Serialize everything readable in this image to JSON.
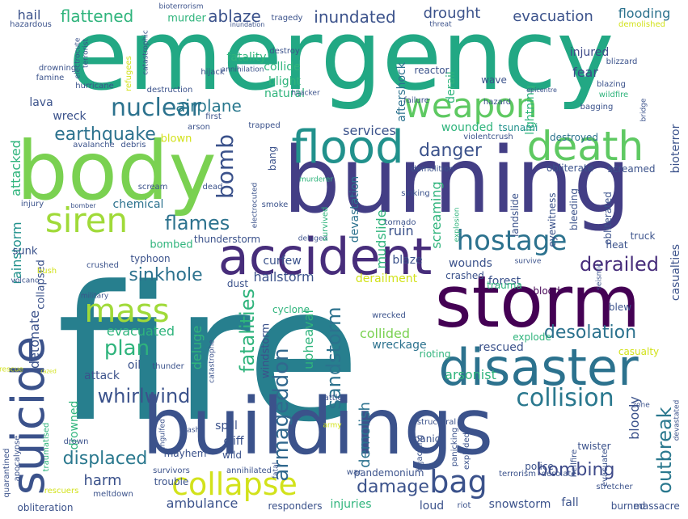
{
  "words": [
    {
      "text": "fire",
      "color": "#277f8e"
    },
    {
      "text": "emergency",
      "color": "#22a884"
    },
    {
      "text": "burning",
      "color": "#433e85"
    },
    {
      "text": "buildings",
      "color": "#3b528b"
    },
    {
      "text": "body",
      "color": "#7ad151"
    },
    {
      "text": "storm",
      "color": "#440154"
    },
    {
      "text": "accident",
      "color": "#472d7b"
    },
    {
      "text": "disaster",
      "color": "#2c728e"
    },
    {
      "text": "death",
      "color": "#5ec962"
    },
    {
      "text": "flood",
      "color": "#21918c"
    },
    {
      "text": "weapon",
      "color": "#5ec962"
    },
    {
      "text": "suicide",
      "color": "#3b528b"
    },
    {
      "text": "siren",
      "color": "#a0da39"
    },
    {
      "text": "mass",
      "color": "#a0da39"
    },
    {
      "text": "hostage",
      "color": "#2c728e"
    },
    {
      "text": "nuclear",
      "color": "#2c728e"
    },
    {
      "text": "collapse",
      "color": "#d2e21b"
    },
    {
      "text": "bag",
      "color": "#3b528b"
    },
    {
      "text": "collision",
      "color": "#2a788e"
    },
    {
      "text": "whirlwind",
      "color": "#3b528b"
    },
    {
      "text": "bomb",
      "color": "#3b528b"
    },
    {
      "text": "derailed",
      "color": "#472d7b"
    },
    {
      "text": "flames",
      "color": "#2c728e"
    },
    {
      "text": "earthquake",
      "color": "#2c728e"
    },
    {
      "text": "danger",
      "color": "#3b528b"
    },
    {
      "text": "desolation",
      "color": "#2c728e"
    },
    {
      "text": "armageddon",
      "color": "#31688e"
    },
    {
      "text": "sandstorm",
      "color": "#2c728e"
    },
    {
      "text": "plan",
      "color": "#2fb47c"
    },
    {
      "text": "displaced",
      "color": "#2a788e"
    },
    {
      "text": "damage",
      "color": "#3b528b"
    },
    {
      "text": "bombing",
      "color": "#3e4a89"
    },
    {
      "text": "outbreak",
      "color": "#2a788e"
    },
    {
      "text": "fatalities",
      "color": "#2fb47c"
    },
    {
      "text": "sinkhole",
      "color": "#2c728e"
    },
    {
      "text": "evacuation",
      "color": "#3b528b"
    },
    {
      "text": "inundated",
      "color": "#3b528b"
    },
    {
      "text": "flattened",
      "color": "#2fb47c"
    },
    {
      "text": "ablaze",
      "color": "#3b528b"
    },
    {
      "text": "drought",
      "color": "#3b528b"
    },
    {
      "text": "flooding",
      "color": "#2c728e"
    },
    {
      "text": "airplane",
      "color": "#2a788e"
    },
    {
      "text": "fear",
      "color": "#3e4a89"
    },
    {
      "text": "injured",
      "color": "#3e4a89"
    },
    {
      "text": "harm",
      "color": "#3b528b"
    },
    {
      "text": "ambulance",
      "color": "#3b528b"
    },
    {
      "text": "evacuated",
      "color": "#2fb47c"
    },
    {
      "text": "collided",
      "color": "#7ad151"
    },
    {
      "text": "arsonist",
      "color": "#2fb47c"
    },
    {
      "text": "forest",
      "color": "#3b528b"
    },
    {
      "text": "wounds",
      "color": "#3b528b"
    },
    {
      "text": "wreckage",
      "color": "#2c728e"
    },
    {
      "text": "rescued",
      "color": "#3b528b"
    },
    {
      "text": "deluge",
      "color": "#2fb47c"
    },
    {
      "text": "upheaval",
      "color": "#2fb47c"
    },
    {
      "text": "demolish",
      "color": "#2c728e"
    },
    {
      "text": "rainstorm",
      "color": "#21918c"
    },
    {
      "text": "detonate",
      "color": "#3b528b"
    },
    {
      "text": "attacked",
      "color": "#2fb47c"
    },
    {
      "text": "services",
      "color": "#3b528b"
    },
    {
      "text": "wounded",
      "color": "#2fb47c"
    },
    {
      "text": "bloody",
      "color": "#3b528b"
    },
    {
      "text": "casualties",
      "color": "#3b528b"
    },
    {
      "text": "bioterror",
      "color": "#3b528b"
    },
    {
      "text": "ruin",
      "color": "#3b528b"
    },
    {
      "text": "mudslide",
      "color": "#2fb47c"
    },
    {
      "text": "devastation",
      "color": "#2c728e"
    },
    {
      "text": "screaming",
      "color": "#2fb47c"
    },
    {
      "text": "hailstorm",
      "color": "#3b528b"
    },
    {
      "text": "curfew",
      "color": "#3b528b"
    },
    {
      "text": "blaze",
      "color": "#3b528b"
    },
    {
      "text": "chemical",
      "color": "#2c728e"
    },
    {
      "text": "natural",
      "color": "#2fb47c"
    },
    {
      "text": "blight",
      "color": "#2fb47c"
    },
    {
      "text": "collide",
      "color": "#2fb47c"
    },
    {
      "text": "fatality",
      "color": "#2fb47c"
    },
    {
      "text": "murder",
      "color": "#2fb47c"
    },
    {
      "text": "hail",
      "color": "#3b528b"
    },
    {
      "text": "aftershock",
      "color": "#2c728e"
    },
    {
      "text": "derail",
      "color": "#2fb47c"
    },
    {
      "text": "lightning",
      "color": "#2fb47c"
    },
    {
      "text": "wave",
      "color": "#3b528b"
    },
    {
      "text": "wreck",
      "color": "#3b528b"
    },
    {
      "text": "lava",
      "color": "#3b528b"
    },
    {
      "text": "blown",
      "color": "#d2e21b"
    },
    {
      "text": "bombed",
      "color": "#2fb47c"
    },
    {
      "text": "sunk",
      "color": "#3b528b"
    },
    {
      "text": "collapsed",
      "color": "#3b528b"
    },
    {
      "text": "attack",
      "color": "#3b528b"
    },
    {
      "text": "oil",
      "color": "#3b528b"
    },
    {
      "text": "drowned",
      "color": "#2fb47c"
    },
    {
      "text": "spill",
      "color": "#3b528b"
    },
    {
      "text": "cliff",
      "color": "#3b528b"
    },
    {
      "text": "windstorm",
      "color": "#3b528b"
    },
    {
      "text": "loud",
      "color": "#3b528b"
    },
    {
      "text": "injuries",
      "color": "#2fb47c"
    },
    {
      "text": "snowstorm",
      "color": "#3b528b"
    },
    {
      "text": "fall",
      "color": "#3b528b"
    },
    {
      "text": "panic",
      "color": "#3b528b"
    },
    {
      "text": "bang",
      "color": "#3b528b"
    },
    {
      "text": "destroyed",
      "color": "#2c728e"
    },
    {
      "text": "tsunami",
      "color": "#21918c"
    },
    {
      "text": "reactor",
      "color": "#3b528b"
    },
    {
      "text": "screamed",
      "color": "#3b528b"
    },
    {
      "text": "obliterate",
      "color": "#3b528b"
    },
    {
      "text": "eyewitness",
      "color": "#3b528b"
    },
    {
      "text": "landslide",
      "color": "#3b528b"
    },
    {
      "text": "bleeding",
      "color": "#3b528b"
    },
    {
      "text": "obliterated",
      "color": "#3b528b"
    },
    {
      "text": "heat",
      "color": "#3b528b"
    },
    {
      "text": "truck",
      "color": "#3b528b"
    },
    {
      "text": "crashed",
      "color": "#3b528b"
    },
    {
      "text": "trauma",
      "color": "#2fb47c"
    },
    {
      "text": "blood",
      "color": "#440154"
    },
    {
      "text": "blew",
      "color": "#3b528b"
    },
    {
      "text": "seismic",
      "color": "#3b528b"
    },
    {
      "text": "explode",
      "color": "#2fb47c"
    },
    {
      "text": "casualty",
      "color": "#d2e21b"
    },
    {
      "text": "rioting",
      "color": "#2fb47c"
    },
    {
      "text": "explosion",
      "color": "#2fb47c"
    },
    {
      "text": "derailment",
      "color": "#d2e21b"
    },
    {
      "text": "typhoon",
      "color": "#3b528b"
    },
    {
      "text": "crushed",
      "color": "#3b528b"
    },
    {
      "text": "thunderstorm",
      "color": "#3b528b"
    },
    {
      "text": "deluged",
      "color": "#3b528b"
    },
    {
      "text": "dust",
      "color": "#3b528b"
    },
    {
      "text": "cyclone",
      "color": "#2fb47c"
    },
    {
      "text": "catastrophe",
      "color": "#3b528b"
    },
    {
      "text": "thunder",
      "color": "#3b528b"
    },
    {
      "text": "wild",
      "color": "#3b528b"
    },
    {
      "text": "mayhem",
      "color": "#3b528b"
    },
    {
      "text": "survivors",
      "color": "#3b528b"
    },
    {
      "text": "annihilated",
      "color": "#3b528b"
    },
    {
      "text": "war",
      "color": "#3b528b"
    },
    {
      "text": "pandemonium",
      "color": "#3b528b"
    },
    {
      "text": "hijacking",
      "color": "#3b528b"
    },
    {
      "text": "exploded",
      "color": "#3b528b"
    },
    {
      "text": "panicking",
      "color": "#3b528b"
    },
    {
      "text": "terrorism",
      "color": "#3b528b"
    },
    {
      "text": "desolate",
      "color": "#3b528b"
    },
    {
      "text": "police",
      "color": "#3b528b"
    },
    {
      "text": "stretcher",
      "color": "#3b528b"
    },
    {
      "text": "twister",
      "color": "#3b528b"
    },
    {
      "text": "hellfire",
      "color": "#3b528b"
    },
    {
      "text": "evacuate",
      "color": "#3b528b"
    },
    {
      "text": "zone",
      "color": "#3b528b"
    },
    {
      "text": "devastated",
      "color": "#3b528b"
    },
    {
      "text": "burned",
      "color": "#3b528b"
    },
    {
      "text": "massacre",
      "color": "#3b528b"
    },
    {
      "text": "riot",
      "color": "#3b528b"
    },
    {
      "text": "responders",
      "color": "#3b528b"
    },
    {
      "text": "trouble",
      "color": "#3b528b"
    },
    {
      "text": "meltdown",
      "color": "#3b528b"
    },
    {
      "text": "obliteration",
      "color": "#3b528b"
    },
    {
      "text": "quarantined",
      "color": "#3b528b"
    },
    {
      "text": "apocalypse",
      "color": "#3b528b"
    },
    {
      "text": "traumatised",
      "color": "#2fb47c"
    },
    {
      "text": "drown",
      "color": "#3b528b"
    },
    {
      "text": "crash",
      "color": "#3b528b"
    },
    {
      "text": "engulfed",
      "color": "#3b528b"
    },
    {
      "text": "fatal",
      "color": "#3b528b"
    },
    {
      "text": "army",
      "color": "#d2e21b"
    },
    {
      "text": "structural",
      "color": "#3b528b"
    },
    {
      "text": "battle",
      "color": "#3b528b"
    },
    {
      "text": "wrecked",
      "color": "#3b528b"
    },
    {
      "text": "survived",
      "color": "#2fb47c"
    },
    {
      "text": "electrocuted",
      "color": "#3b528b"
    },
    {
      "text": "dead",
      "color": "#3b528b"
    },
    {
      "text": "smoke",
      "color": "#3b528b"
    },
    {
      "text": "tornado",
      "color": "#3b528b"
    },
    {
      "text": "sinking",
      "color": "#3b528b"
    },
    {
      "text": "demolition",
      "color": "#3b528b"
    },
    {
      "text": "murderer",
      "color": "#2fb47c"
    },
    {
      "text": "violentcrush",
      "color": "#3b528b"
    },
    {
      "text": "trapped",
      "color": "#3b528b"
    },
    {
      "text": "arson",
      "color": "#3b528b"
    },
    {
      "text": "first",
      "color": "#3b528b"
    },
    {
      "text": "scream",
      "color": "#3b528b"
    },
    {
      "text": "destruction",
      "color": "#3b528b"
    },
    {
      "text": "debris",
      "color": "#3b528b"
    },
    {
      "text": "avalanche",
      "color": "#3b528b"
    },
    {
      "text": "hurricane",
      "color": "#3b528b"
    },
    {
      "text": "hijack",
      "color": "#3b528b"
    },
    {
      "text": "hijacker",
      "color": "#3b528b"
    },
    {
      "text": "catastrophic",
      "color": "#3b528b"
    },
    {
      "text": "refugees",
      "color": "#d2e21b"
    },
    {
      "text": "terrorist",
      "color": "#3b528b"
    },
    {
      "text": "electrocute",
      "color": "#3b528b"
    },
    {
      "text": "famine",
      "color": "#3b528b"
    },
    {
      "text": "drowning",
      "color": "#3b528b"
    },
    {
      "text": "hazardous",
      "color": "#3b528b"
    },
    {
      "text": "annihilation",
      "color": "#3b528b"
    },
    {
      "text": "destroy",
      "color": "#3b528b"
    },
    {
      "text": "tragedy",
      "color": "#3b528b"
    },
    {
      "text": "inundation",
      "color": "#3b528b"
    },
    {
      "text": "bioterrorism",
      "color": "#3b528b"
    },
    {
      "text": "threat",
      "color": "#3b528b"
    },
    {
      "text": "demolished",
      "color": "#d2e21b"
    },
    {
      "text": "blizzard",
      "color": "#3b528b"
    },
    {
      "text": "blazing",
      "color": "#3b528b"
    },
    {
      "text": "wildfire",
      "color": "#2fb47c"
    },
    {
      "text": "hazard",
      "color": "#3b528b"
    },
    {
      "text": "failure",
      "color": "#3b528b"
    },
    {
      "text": "epicentre",
      "color": "#3b528b"
    },
    {
      "text": "bagging",
      "color": "#3b528b"
    },
    {
      "text": "bridge",
      "color": "#3b528b"
    },
    {
      "text": "injury",
      "color": "#3b528b"
    },
    {
      "text": "bomber",
      "color": "#3b528b"
    },
    {
      "text": "bush",
      "color": "#d2e21b"
    },
    {
      "text": "volcano",
      "color": "#3b528b"
    },
    {
      "text": "military",
      "color": "#3b528b"
    },
    {
      "text": "rescue",
      "color": "#d2e21b"
    },
    {
      "text": "razed",
      "color": "#d2e21b"
    },
    {
      "text": "rescuers",
      "color": "#d2e21b"
    },
    {
      "text": "survive",
      "color": "#3b528b"
    }
  ]
}
